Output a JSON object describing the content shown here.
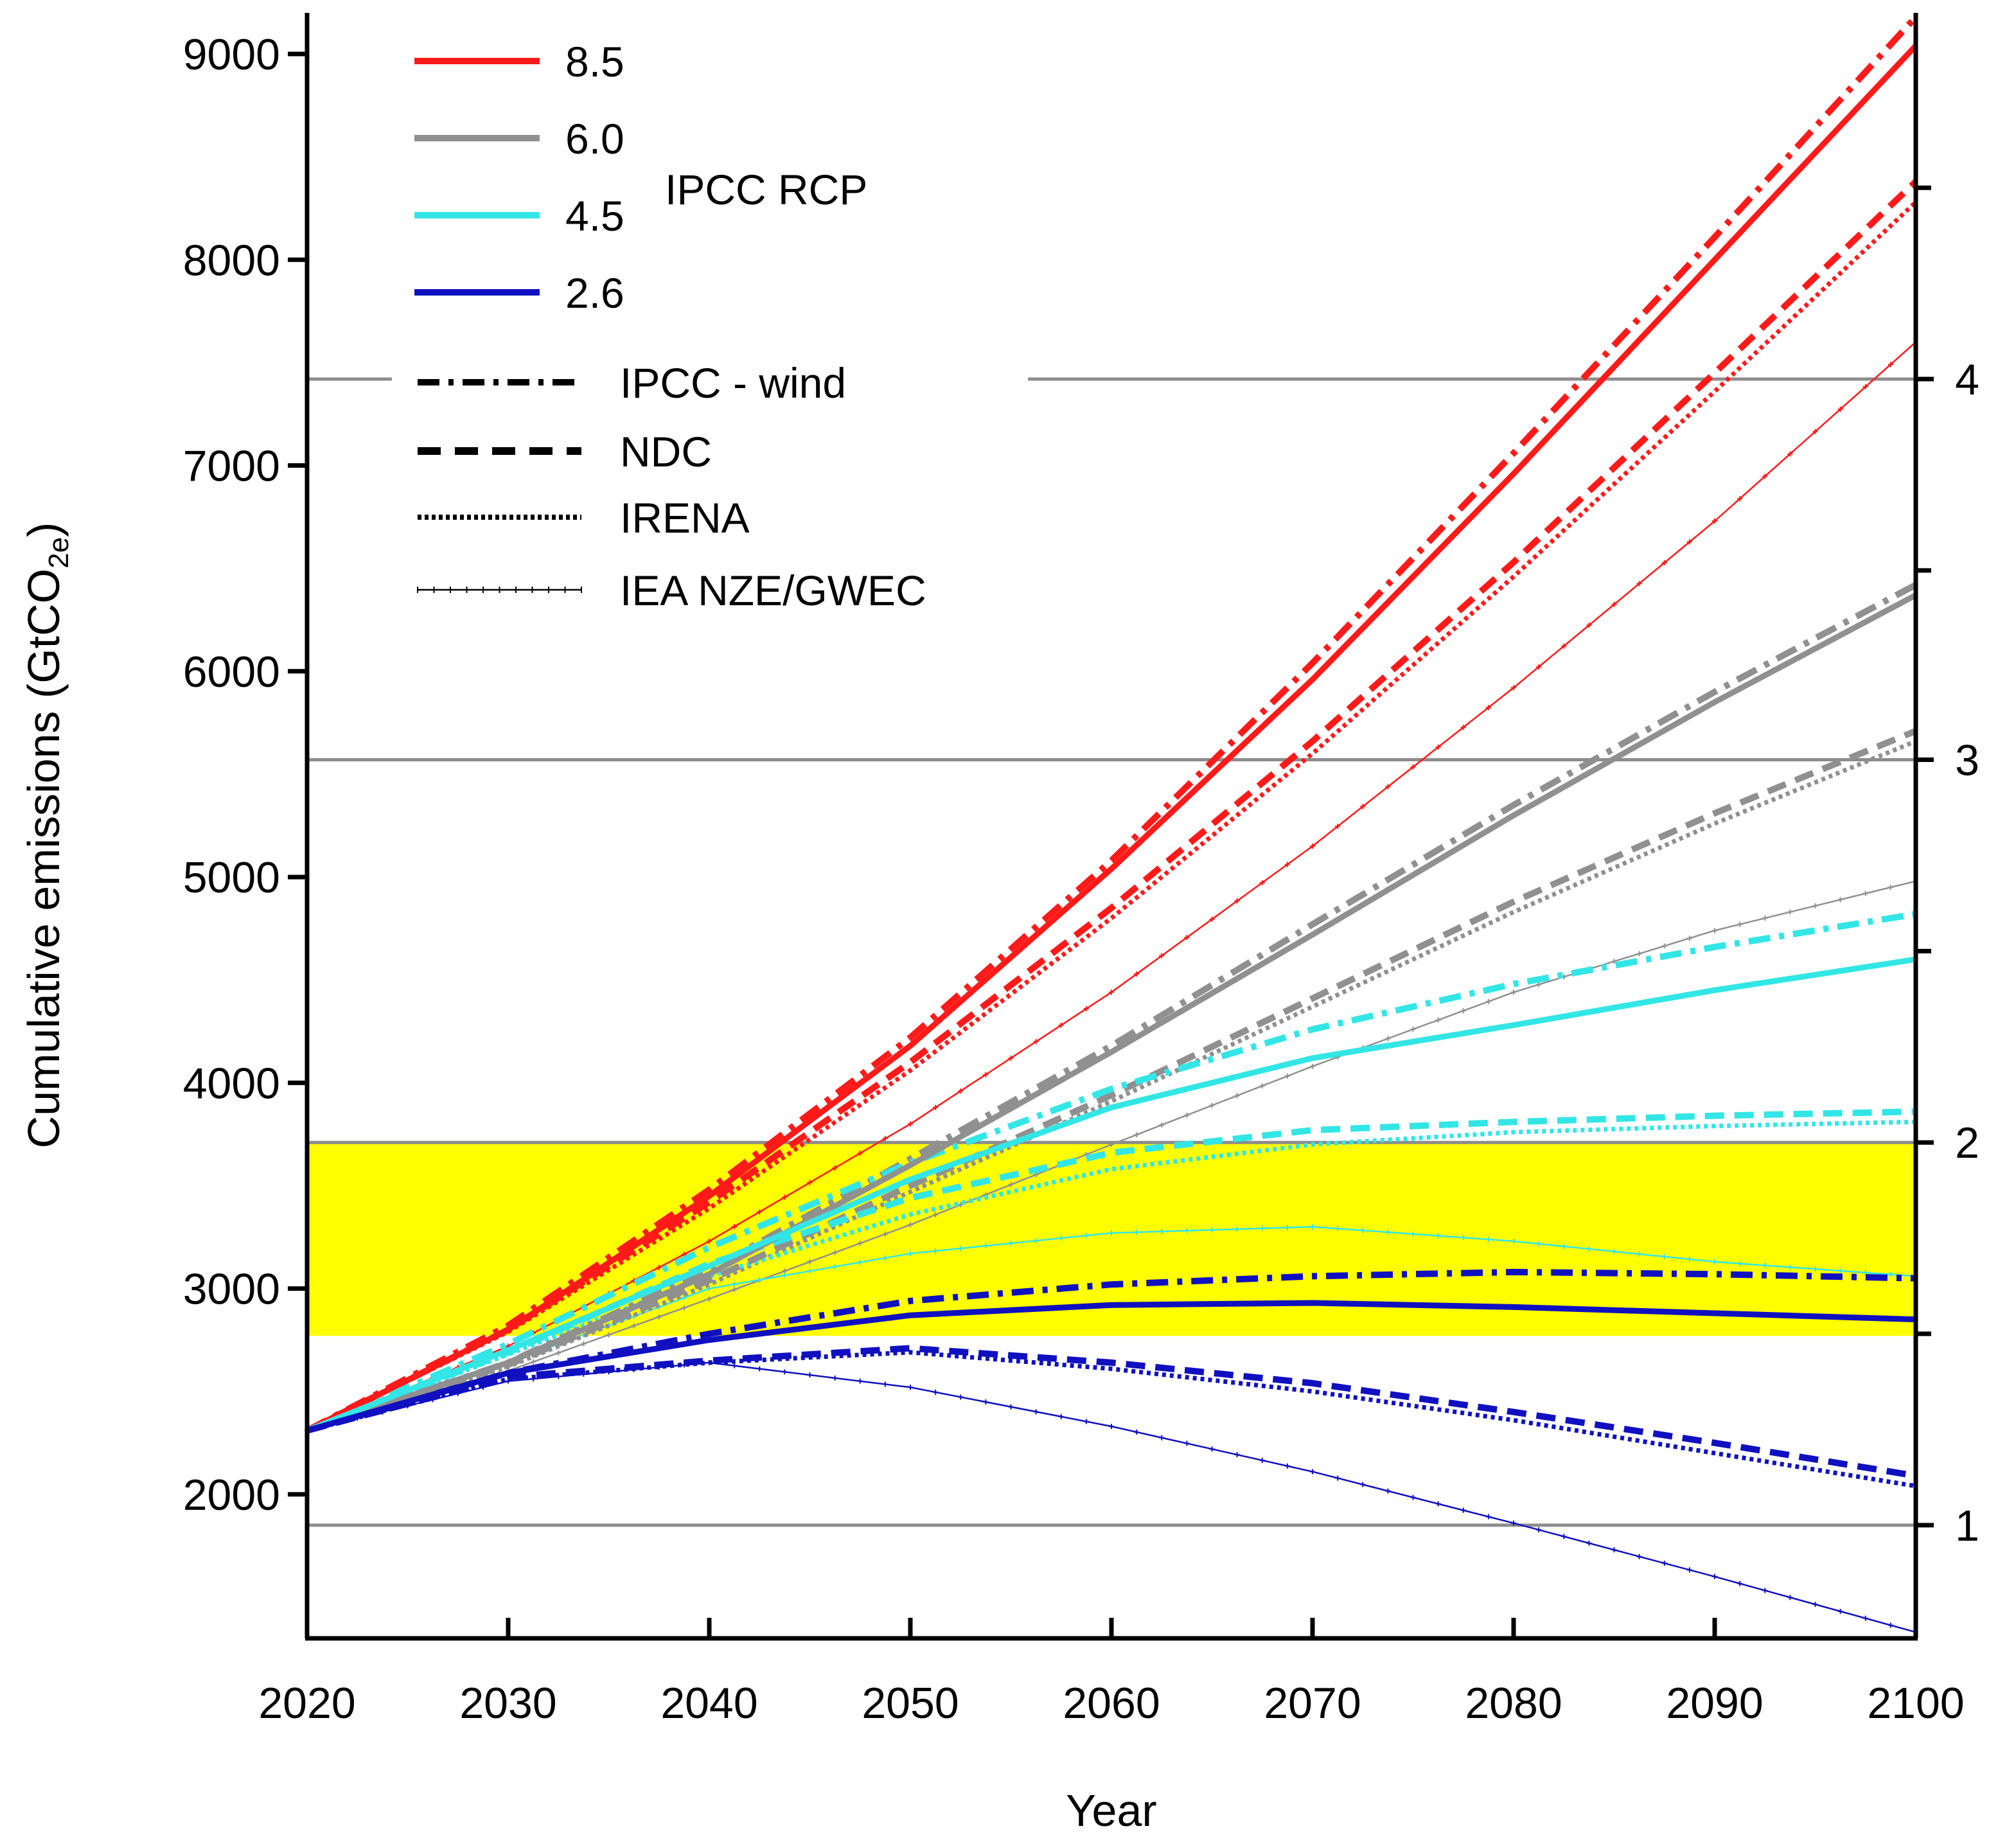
{
  "chart_data": {
    "type": "line",
    "x": [
      2020,
      2030,
      2040,
      2050,
      2060,
      2070,
      2080,
      2090,
      2100
    ],
    "xlabel": "Year",
    "ylabel": "Cumulative emissions (GtCO",
    "ylabel_sub": "2e",
    "ylabel_close": ")",
    "xlim": [
      2020,
      2100
    ],
    "ylim": [
      1300,
      9200
    ],
    "x_ticks": [
      2020,
      2030,
      2040,
      2050,
      2060,
      2070,
      2080,
      2090,
      2100
    ],
    "y_ticks": [
      2000,
      3000,
      4000,
      5000,
      6000,
      7000,
      8000,
      9000
    ],
    "right_axis": {
      "ticks": [
        {
          "y": 1850,
          "label": "1"
        },
        {
          "y": 3710,
          "label": "2"
        },
        {
          "y": 5570,
          "label": "3"
        },
        {
          "y": 7420,
          "label": "4"
        }
      ],
      "minor_ticks": [
        2780,
        4640,
        6490,
        8350
      ]
    },
    "reference_lines": [
      1850,
      3710,
      5570,
      7420
    ],
    "shaded_band": {
      "y0": 2770,
      "y1": 3710,
      "color": "#ffff00"
    },
    "colors": {
      "8.5": "#ff1a1a",
      "6.0": "#909090",
      "4.5": "#33e6e6",
      "2.6": "#1010c0"
    },
    "legend": {
      "rcp_title": "IPCC RCP",
      "rcp": [
        {
          "label": "8.5",
          "color": "#ff1a1a"
        },
        {
          "label": "6.0",
          "color": "#909090"
        },
        {
          "label": "4.5",
          "color": "#33e6e6"
        },
        {
          "label": "2.6",
          "color": "#1010c0"
        }
      ],
      "scenarios": [
        {
          "label": "IPCC - wind",
          "style": "dashdot"
        },
        {
          "label": "NDC",
          "style": "dash"
        },
        {
          "label": "IRENA",
          "style": "dot"
        },
        {
          "label": "IEA NZE/GWEC",
          "style": "cross"
        }
      ]
    },
    "series": [
      {
        "name": "8.5 IPCC",
        "rcp": "8.5",
        "style": "solid",
        "values": [
          2310,
          2800,
          3450,
          4180,
          5040,
          5960,
          6960,
          8000,
          9040
        ]
      },
      {
        "name": "8.5 IPCC - wind",
        "rcp": "8.5",
        "style": "dashdot",
        "values": [
          2310,
          2820,
          3480,
          4220,
          5080,
          6040,
          7060,
          8110,
          9180
        ]
      },
      {
        "name": "8.5 NDC",
        "rcp": "8.5",
        "style": "dash",
        "values": [
          2310,
          2800,
          3420,
          4100,
          4850,
          5660,
          6530,
          7450,
          8380
        ]
      },
      {
        "name": "8.5 IRENA",
        "rcp": "8.5",
        "style": "dot",
        "values": [
          2310,
          2790,
          3390,
          4060,
          4800,
          5600,
          6460,
          7360,
          8280
        ]
      },
      {
        "name": "8.5 IEA NZE/GWEC",
        "rcp": "8.5",
        "style": "cross",
        "values": [
          2310,
          2720,
          3230,
          3800,
          4440,
          5150,
          5920,
          6730,
          7600
        ]
      },
      {
        "name": "6.0 IPCC",
        "rcp": "6.0",
        "style": "solid",
        "values": [
          2310,
          2640,
          3070,
          3600,
          4150,
          4720,
          5300,
          5850,
          6370
        ]
      },
      {
        "name": "6.0 IPCC - wind",
        "rcp": "6.0",
        "style": "dashdot",
        "values": [
          2310,
          2640,
          3090,
          3630,
          4180,
          4770,
          5350,
          5900,
          6420
        ]
      },
      {
        "name": "6.0 NDC",
        "rcp": "6.0",
        "style": "dash",
        "values": [
          2310,
          2630,
          3040,
          3500,
          3940,
          4410,
          4880,
          5310,
          5710
        ]
      },
      {
        "name": "6.0 IRENA",
        "rcp": "6.0",
        "style": "dot",
        "values": [
          2310,
          2620,
          3020,
          3470,
          3910,
          4370,
          4830,
          5260,
          5660
        ]
      },
      {
        "name": "6.0 IEA NZE/GWEC",
        "rcp": "6.0",
        "style": "cross",
        "values": [
          2310,
          2600,
          2950,
          3310,
          3700,
          4080,
          4440,
          4740,
          4980
        ]
      },
      {
        "name": "4.5 IPCC",
        "rcp": "4.5",
        "style": "solid",
        "values": [
          2310,
          2700,
          3110,
          3530,
          3880,
          4120,
          4280,
          4450,
          4600
        ]
      },
      {
        "name": "4.5 IPCC - wind",
        "rcp": "4.5",
        "style": "dashdot",
        "values": [
          2310,
          2730,
          3200,
          3610,
          3970,
          4260,
          4480,
          4660,
          4820
        ]
      },
      {
        "name": "4.5 NDC",
        "rcp": "4.5",
        "style": "dash",
        "values": [
          2310,
          2690,
          3120,
          3440,
          3660,
          3770,
          3810,
          3840,
          3860
        ]
      },
      {
        "name": "4.5 IRENA",
        "rcp": "4.5",
        "style": "dot",
        "values": [
          2310,
          2680,
          3060,
          3360,
          3580,
          3700,
          3760,
          3790,
          3810
        ]
      },
      {
        "name": "4.5 IEA NZE/GWEC",
        "rcp": "4.5",
        "style": "cross",
        "values": [
          2310,
          2640,
          3000,
          3170,
          3270,
          3300,
          3230,
          3130,
          3060
        ]
      },
      {
        "name": "2.6 IPCC",
        "rcp": "2.6",
        "style": "solid",
        "values": [
          2310,
          2590,
          2750,
          2870,
          2920,
          2930,
          2910,
          2880,
          2850
        ]
      },
      {
        "name": "2.6 IPCC - wind",
        "rcp": "2.6",
        "style": "dashdot",
        "values": [
          2310,
          2590,
          2780,
          2940,
          3020,
          3060,
          3080,
          3070,
          3050
        ]
      },
      {
        "name": "2.6 NDC",
        "rcp": "2.6",
        "style": "dash",
        "values": [
          2310,
          2570,
          2650,
          2710,
          2640,
          2540,
          2400,
          2250,
          2090
        ]
      },
      {
        "name": "2.6 IRENA",
        "rcp": "2.6",
        "style": "dot",
        "values": [
          2310,
          2560,
          2640,
          2690,
          2610,
          2500,
          2360,
          2200,
          2040
        ]
      },
      {
        "name": "2.6 IEA NZE/GWEC",
        "rcp": "2.6",
        "style": "cross",
        "values": [
          2310,
          2550,
          2640,
          2520,
          2330,
          2110,
          1860,
          1600,
          1330
        ]
      }
    ]
  }
}
